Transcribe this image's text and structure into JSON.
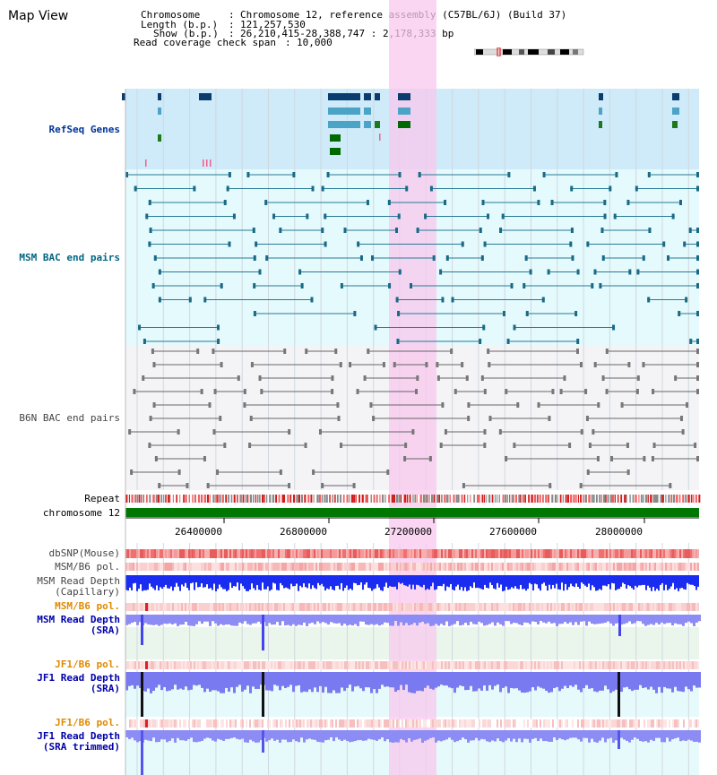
{
  "view_title": "Map View",
  "info": {
    "chromosome_key": "Chromosome",
    "chromosome_val": "Chromosome 12, reference assembly (C57BL/6J) (Build 37)",
    "length_key": "Length (b.p.)",
    "length_val": "121,257,530",
    "show_key": "Show (b.p.)",
    "show_val": "26,210,415-28,388,747 : 2,178,333 bp",
    "coverage_key": "Read coverage check span",
    "coverage_val": "10,000"
  },
  "tracks": {
    "refseq": "RefSeq Genes",
    "msm_bac": "MSM BAC end pairs",
    "b6n_bac": "B6N BAC end pairs",
    "repeat": "Repeat",
    "chromosome": "chromosome 12",
    "dbsnp": "dbSNP(Mouse)",
    "msm_b6_pol_1": "MSM/B6 pol.",
    "msm_depth_cap_1": "MSM Read Depth",
    "msm_depth_cap_2": "(Capillary)",
    "msm_b6_pol_2": "MSM/B6 pol.",
    "msm_depth_sra_1": "MSM Read Depth",
    "msm_depth_sra_2": "(SRA)",
    "jf1_b6_pol_1": "JF1/B6 pol.",
    "jf1_depth_sra_1": "JF1 Read Depth",
    "jf1_depth_sra_2": "(SRA)",
    "jf1_b6_pol_2": "JF1/B6 pol.",
    "jf1_trim_1": "JF1 Read Depth",
    "jf1_trim_2": "(SRA trimmed)"
  },
  "axis_ticks": [
    "26400000",
    "26800000",
    "27200000",
    "27600000",
    "28000000"
  ],
  "colors": {
    "refseq_label": "#003399",
    "msm_label": "#006680",
    "b6n_label": "#444444",
    "orange_label": "#e08a00",
    "blue_label": "#0000aa",
    "highlight": "#f8c8ee",
    "chromosome_bar": "#007700"
  }
}
